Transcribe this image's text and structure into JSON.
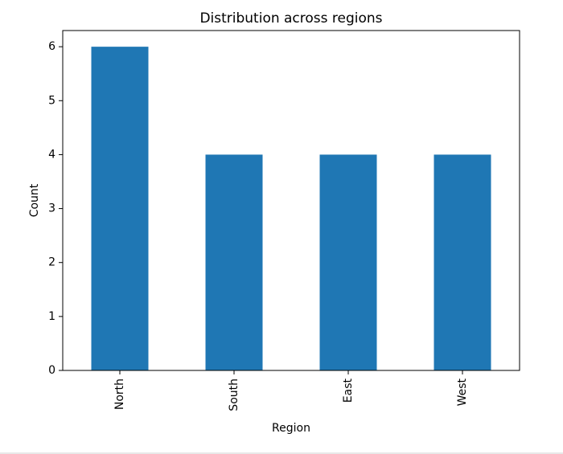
{
  "chart_data": {
    "type": "bar",
    "title": "Distribution across regions",
    "xlabel": "Region",
    "ylabel": "Count",
    "categories": [
      "North",
      "South",
      "East",
      "West"
    ],
    "values": [
      6,
      4,
      4,
      4
    ],
    "ylim": [
      0,
      6.3
    ],
    "yticks": [
      0,
      1,
      2,
      3,
      4,
      5,
      6
    ],
    "grid": false,
    "bar_color": "#1f77b4"
  }
}
